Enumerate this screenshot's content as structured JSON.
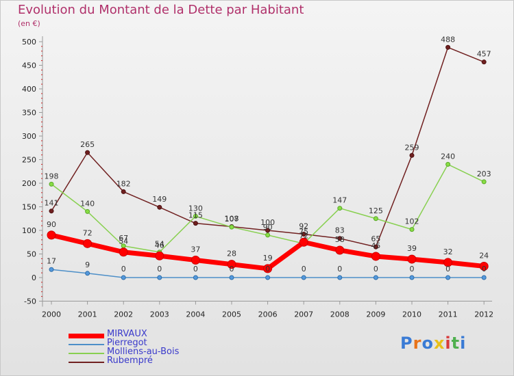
{
  "header": {
    "title": "Evolution du Montant de la Dette par Habitant",
    "unit": "(en €)"
  },
  "logo": {
    "text": "Proxiti"
  },
  "chart_data": {
    "type": "line",
    "title": "Evolution du Montant de la Dette par Habitant",
    "ylabel": "(en €)",
    "xlabel": "",
    "ylim": [
      -50,
      500
    ],
    "yticks": [
      -50,
      0,
      50,
      100,
      150,
      200,
      250,
      300,
      350,
      400,
      450,
      500
    ],
    "x": [
      "2000",
      "2001",
      "2002",
      "2003",
      "2004",
      "2005",
      "2006",
      "2007",
      "2008",
      "2009",
      "2010",
      "2011",
      "2012"
    ],
    "grid": false,
    "legend_position": "bottom-left",
    "series": [
      {
        "name": "MIRVAUX",
        "color": "#ff0000",
        "values": [
          90,
          72,
          54,
          46,
          37,
          28,
          19,
          75,
          58,
          45,
          39,
          32,
          24
        ]
      },
      {
        "name": "Pierregot",
        "color": "#4d8fc8",
        "values": [
          17,
          9,
          0,
          0,
          0,
          0,
          0,
          0,
          0,
          0,
          0,
          0,
          0
        ]
      },
      {
        "name": "Molliens-au-Bois",
        "color": "#88d050",
        "values": [
          198,
          140,
          67,
          54,
          130,
          107,
          90,
          72,
          147,
          125,
          102,
          240,
          203
        ]
      },
      {
        "name": "Rubempré",
        "color": "#702020",
        "values": [
          141,
          265,
          182,
          149,
          115,
          108,
          100,
          92,
          83,
          65,
          259,
          488,
          457
        ]
      }
    ]
  }
}
